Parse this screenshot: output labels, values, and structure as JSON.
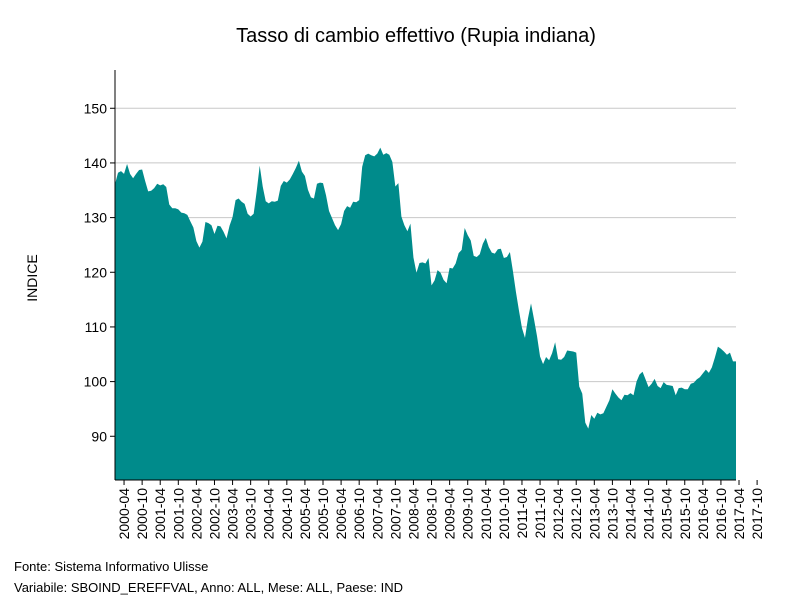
{
  "chart_data": {
    "type": "area",
    "title": "Tasso di cambio effettivo (Rupia indiana)",
    "xlabel": "",
    "ylabel": "INDICE",
    "ylim": [
      82,
      157
    ],
    "y_ticks": [
      90,
      100,
      110,
      120,
      130,
      140,
      150
    ],
    "grid": true,
    "fill_color": "#008b8b",
    "x_tick_labels": [
      "2000-04",
      "2000-10",
      "2001-04",
      "2001-10",
      "2002-04",
      "2002-10",
      "2003-04",
      "2003-10",
      "2004-04",
      "2004-10",
      "2005-04",
      "2005-10",
      "2006-04",
      "2006-10",
      "2007-04",
      "2007-10",
      "2008-04",
      "2008-10",
      "2009-04",
      "2009-10",
      "2010-04",
      "2010-10",
      "2011-04",
      "2011-10",
      "2012-04",
      "2012-10",
      "2013-04",
      "2013-10",
      "2014-04",
      "2014-10",
      "2015-04",
      "2015-10",
      "2016-04",
      "2016-10",
      "2017-04",
      "2017-10"
    ],
    "start_period": "2000-01",
    "series": [
      {
        "values": [
          136.1,
          138.2,
          138.5,
          138.0,
          139.8,
          138.0,
          137.2,
          138.0,
          138.7,
          138.8,
          136.7,
          134.8,
          134.9,
          135.4,
          136.2,
          135.9,
          136.1,
          135.6,
          132.4,
          131.7,
          131.7,
          131.5,
          130.9,
          130.8,
          130.5,
          129.3,
          128.2,
          125.7,
          124.5,
          125.6,
          129.2,
          129.0,
          128.6,
          127.0,
          128.5,
          128.4,
          127.4,
          126.2,
          128.5,
          130.1,
          133.2,
          133.5,
          132.9,
          132.5,
          130.7,
          130.2,
          130.7,
          134.8,
          139.5,
          135.7,
          133.0,
          132.6,
          133.0,
          132.9,
          133.1,
          135.8,
          136.7,
          136.4,
          137.0,
          138.0,
          139.1,
          140.4,
          138.4,
          137.6,
          135.1,
          133.7,
          133.5,
          136.2,
          136.4,
          136.3,
          134.1,
          131.2,
          129.9,
          128.6,
          127.7,
          128.8,
          131.2,
          132.1,
          131.8,
          132.9,
          132.8,
          133.2,
          139.3,
          141.4,
          141.7,
          141.4,
          141.2,
          141.7,
          142.8,
          141.5,
          141.8,
          141.5,
          140.2,
          135.7,
          136.3,
          130.2,
          128.6,
          127.5,
          128.9,
          122.7,
          119.9,
          121.7,
          121.8,
          121.6,
          122.6,
          117.6,
          118.5,
          120.4,
          119.9,
          118.6,
          118.0,
          120.8,
          120.7,
          121.6,
          123.5,
          124.1,
          128.1,
          126.8,
          125.8,
          123.0,
          122.8,
          123.3,
          125.2,
          126.3,
          124.6,
          123.6,
          123.4,
          124.2,
          124.3,
          122.6,
          122.8,
          123.7,
          120.2,
          116.4,
          113.0,
          109.8,
          108.0,
          111.6,
          114.3,
          111.4,
          108.3,
          104.6,
          103.2,
          104.5,
          103.9,
          105.2,
          107.2,
          104.1,
          104.0,
          104.5,
          105.7,
          105.6,
          105.5,
          105.3,
          99.1,
          97.8,
          92.5,
          91.4,
          93.9,
          93.2,
          94.3,
          94.0,
          94.2,
          95.4,
          96.6,
          98.6,
          97.8,
          97.1,
          96.6,
          97.6,
          97.5,
          97.9,
          97.5,
          100.0,
          101.3,
          101.8,
          100.4,
          99.0,
          99.6,
          100.5,
          99.2,
          98.8,
          99.9,
          99.4,
          99.3,
          99.2,
          97.5,
          98.8,
          98.9,
          98.6,
          98.6,
          99.6,
          99.8,
          100.4,
          100.8,
          101.5,
          102.2,
          101.6,
          102.6,
          104.4,
          106.4,
          106.0,
          105.5,
          104.9,
          105.3,
          103.7,
          103.7
        ]
      }
    ]
  },
  "footer": {
    "source": "Fonte: Sistema Informativo Ulisse",
    "variables": "Variabile: SBOIND_EREFFVAL, Anno: ALL, Mese: ALL, Paese: IND"
  }
}
